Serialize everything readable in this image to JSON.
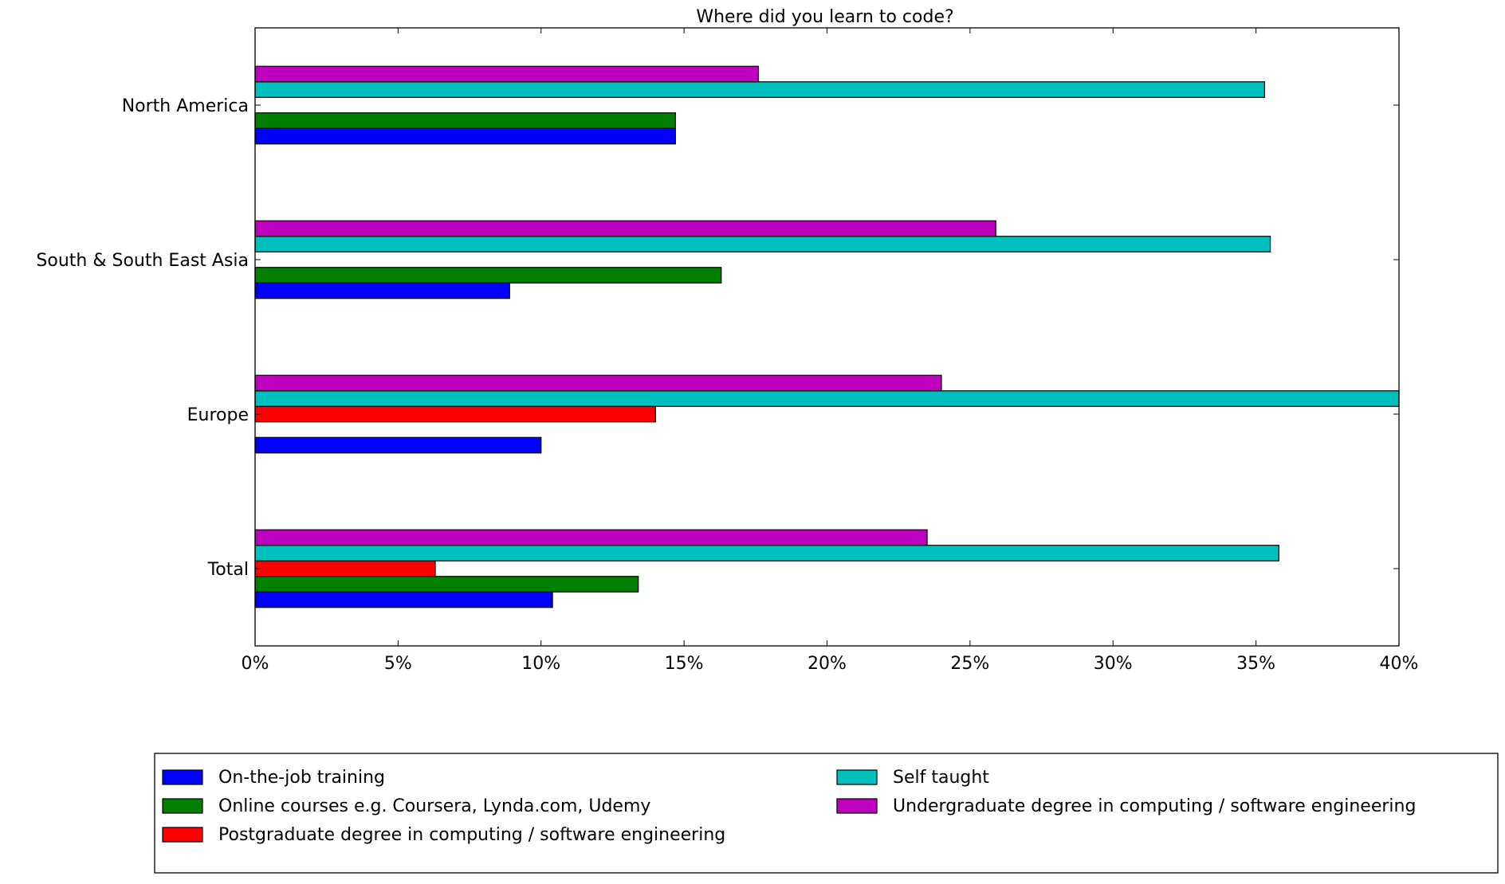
{
  "chart_data": {
    "type": "bar",
    "orientation": "horizontal",
    "title": "Where did you learn to code?",
    "xlabel": "",
    "ylabel": "",
    "xlim": [
      0,
      40
    ],
    "x_ticks": [
      0,
      5,
      10,
      15,
      20,
      25,
      30,
      35,
      40
    ],
    "x_tick_labels": [
      "0%",
      "5%",
      "10%",
      "15%",
      "20%",
      "25%",
      "30%",
      "35%",
      "40%"
    ],
    "categories": [
      "North America",
      "South & South East Asia",
      "Europe",
      "Total"
    ],
    "grid": false,
    "legend_position": "bottom",
    "series": [
      {
        "name": "On-the-job training",
        "color": "#0000ff",
        "values": [
          14.7,
          8.9,
          10.0,
          10.4
        ]
      },
      {
        "name": "Online courses e.g. Coursera, Lynda.com, Udemy",
        "color": "#008000",
        "values": [
          14.7,
          16.3,
          0,
          13.4
        ]
      },
      {
        "name": "Postgraduate degree in computing / software engineering",
        "color": "#ff0000",
        "values": [
          0,
          0,
          14.0,
          6.3
        ]
      },
      {
        "name": "Self taught",
        "color": "#00bfbf",
        "values": [
          35.3,
          35.5,
          40.0,
          35.8
        ]
      },
      {
        "name": "Undergraduate degree in computing / software engineering",
        "color": "#bf00bf",
        "values": [
          17.6,
          25.9,
          24.0,
          23.5
        ]
      }
    ]
  }
}
